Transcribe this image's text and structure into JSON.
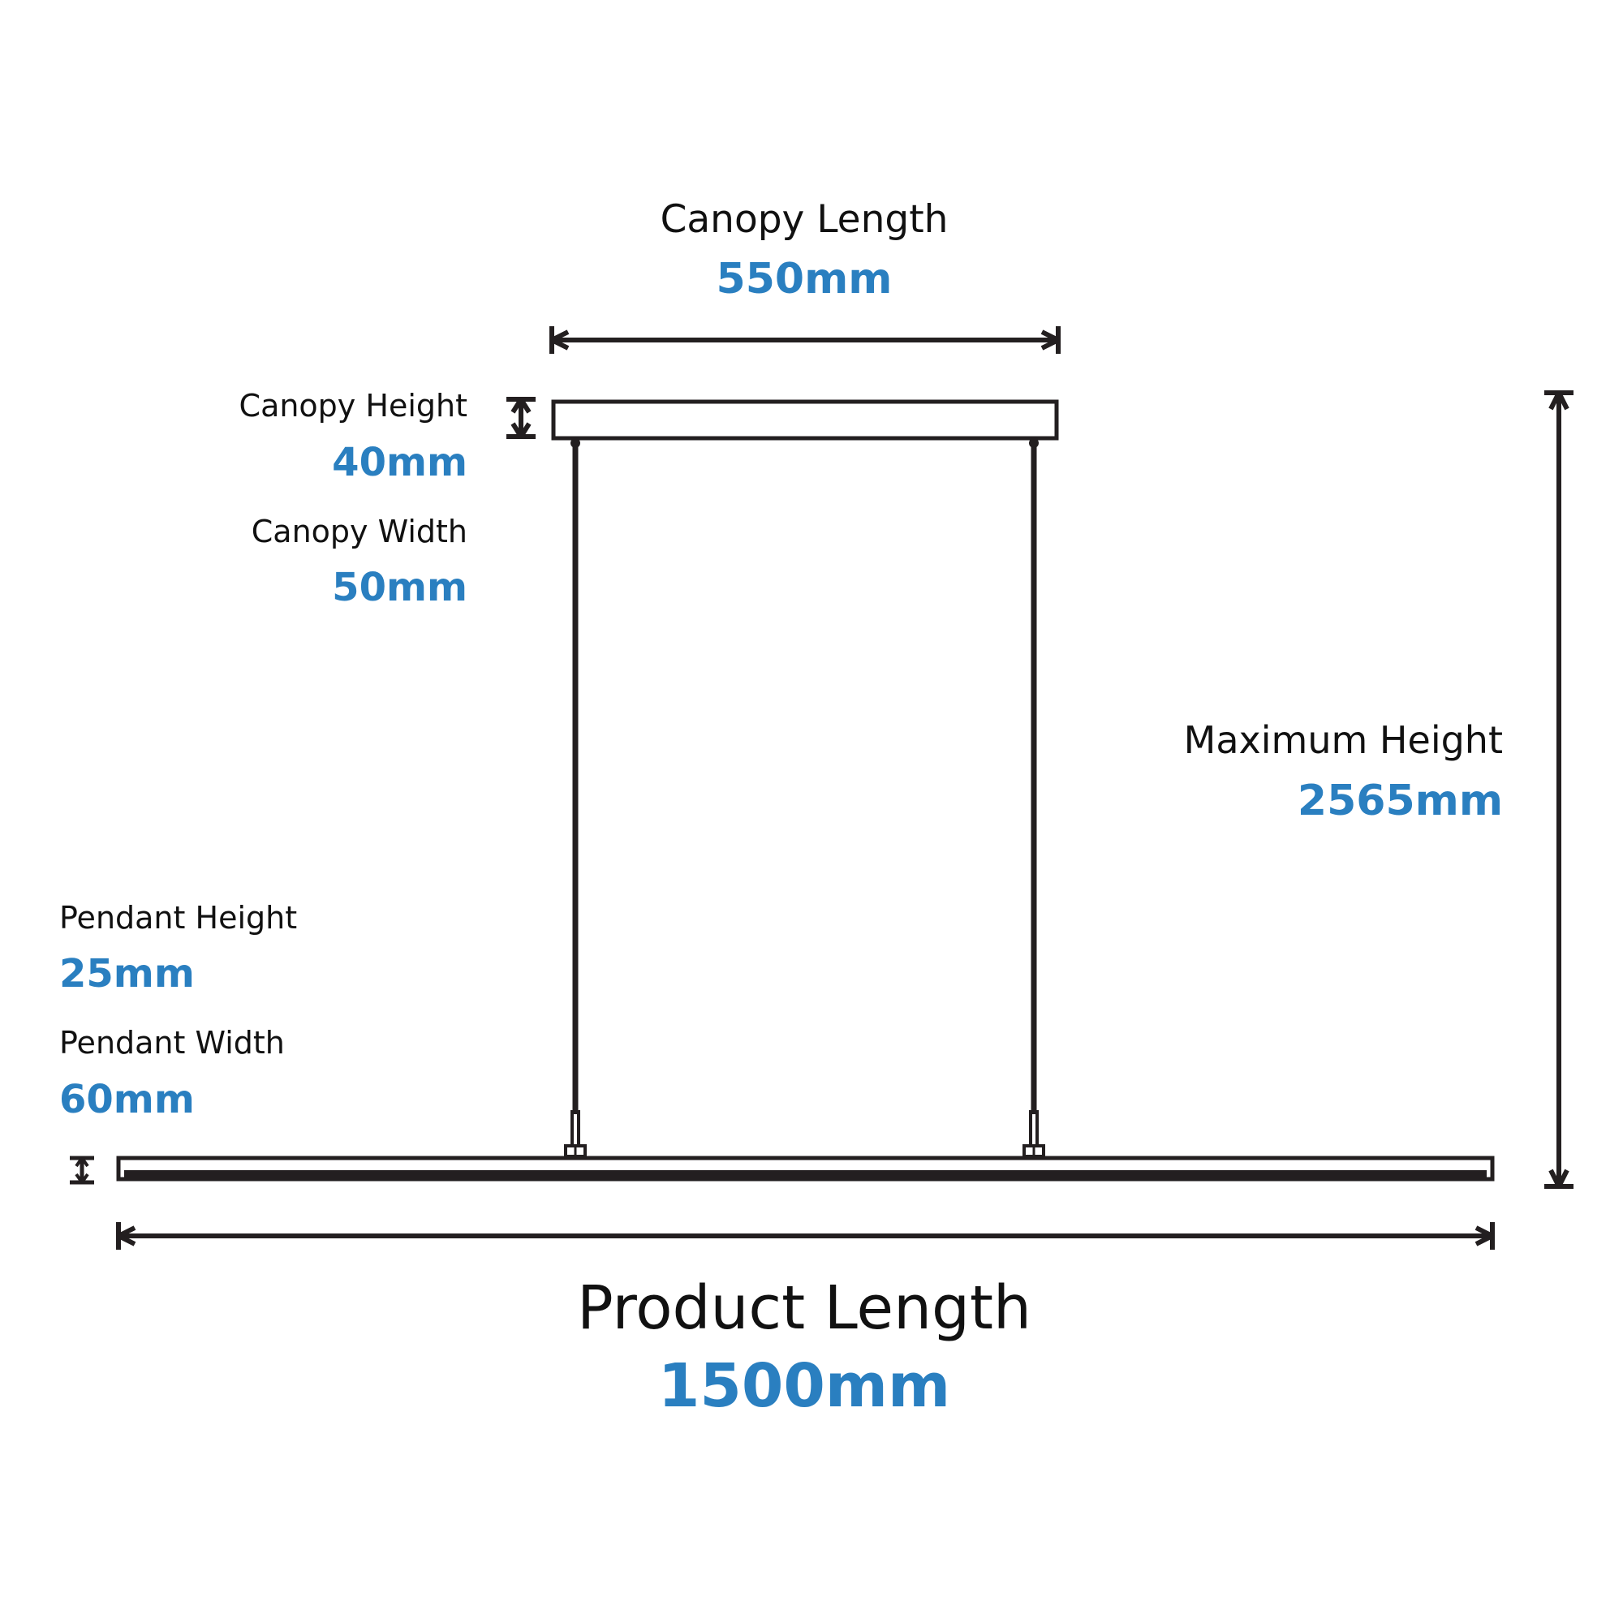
{
  "colors": {
    "line": "#231f20",
    "label": "#111111",
    "value": "#2a7fc0",
    "background": "#ffffff"
  },
  "canopy_length": {
    "label": "Canopy Length",
    "value": "550mm"
  },
  "canopy_height": {
    "label": "Canopy Height",
    "value": "40mm"
  },
  "canopy_width": {
    "label": "Canopy Width",
    "value": "50mm"
  },
  "maximum_height": {
    "label": "Maximum Height",
    "value": "2565mm"
  },
  "pendant_height": {
    "label": "Pendant Height",
    "value": "25mm"
  },
  "pendant_width": {
    "label": "Pendant Width",
    "value": "60mm"
  },
  "product_length": {
    "label": "Product Length",
    "value": "1500mm"
  }
}
